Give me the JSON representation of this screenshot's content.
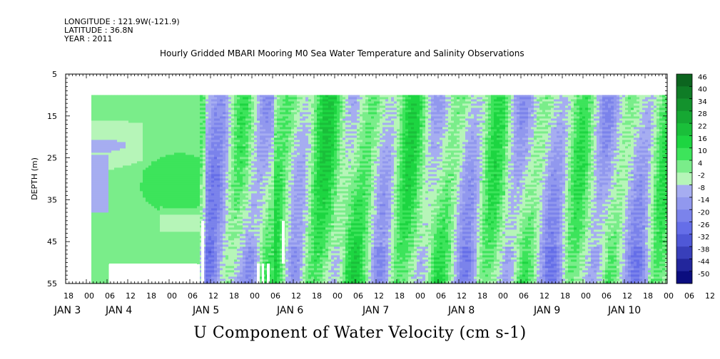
{
  "header": {
    "longitude": "LONGITUDE : 121.9W(-121.9)",
    "latitude": "LATITUDE : 36.8N",
    "year": "YEAR : 2011"
  },
  "chart_data": {
    "type": "heatmap",
    "title": "Hourly Gridded MBARI Mooring M0 Sea Water Temperature and Salinity Observations",
    "xlabel_bottom": "U Component of Water Velocity (cm s-1)",
    "ylabel": "DEPTH (m)",
    "y_ticks": [
      "5",
      "15",
      "25",
      "35",
      "45",
      "55"
    ],
    "ylim": [
      5,
      55
    ],
    "hour_ticks": [
      "18",
      "00",
      "06",
      "12",
      "18",
      "00",
      "06",
      "12",
      "18",
      "00",
      "06",
      "12",
      "18",
      "00",
      "06",
      "12",
      "18",
      "00",
      "06",
      "12",
      "18",
      "00",
      "06",
      "12",
      "18",
      "00",
      "06",
      "12",
      "18",
      "00",
      "06",
      "12",
      "18"
    ],
    "day_labels": [
      "JAN  3",
      "JAN  4",
      "JAN  5",
      "JAN  6",
      "JAN  7",
      "JAN  8",
      "JAN  9",
      "JAN 10"
    ],
    "colorbar_labels": [
      "46",
      "40",
      "34",
      "28",
      "22",
      "16",
      "10",
      "4",
      "-2",
      "-8",
      "-14",
      "-20",
      "-26",
      "-32",
      "-38",
      "-44",
      "-50"
    ],
    "colorbar_range": [
      -50,
      52
    ],
    "colors": {
      "strong_positive": "#0a5a1c",
      "positive": "#1fe044",
      "weak_positive": "#b6f5b8",
      "weak_negative": "#aab0f2",
      "negative": "#5a64e6",
      "strong_negative": "#000070"
    }
  }
}
